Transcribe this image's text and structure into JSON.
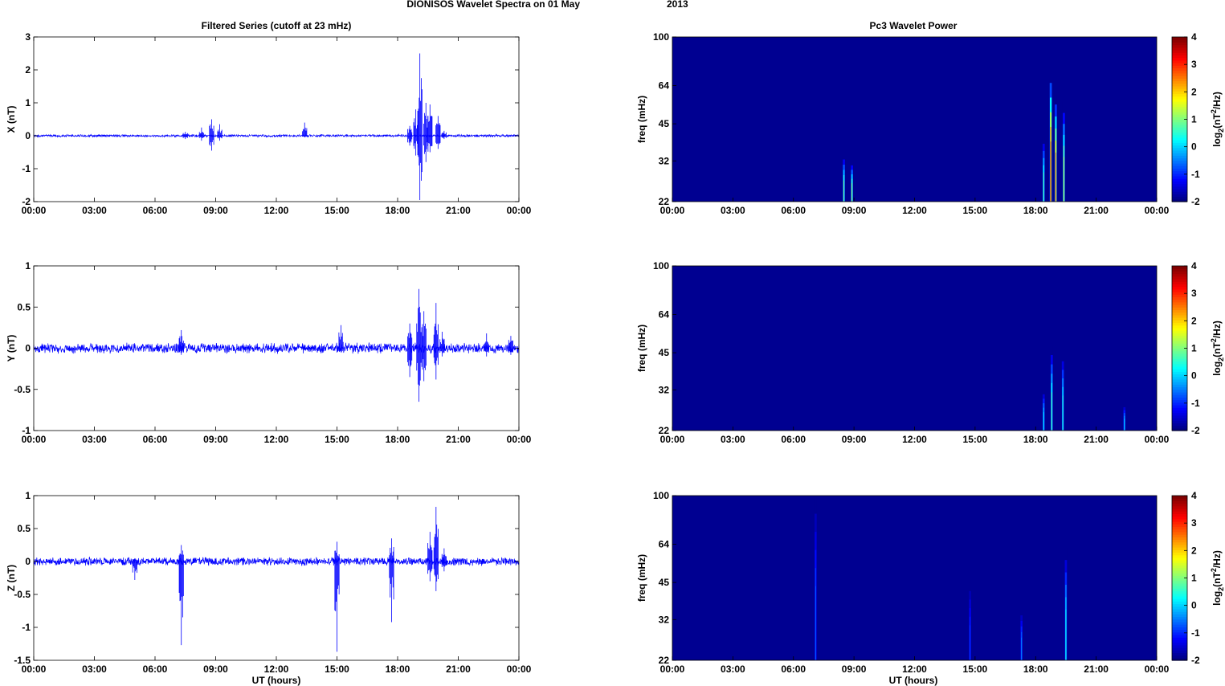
{
  "figure": {
    "suptitle_part1": "DIONISOS Wavelet Spectra on 01 May",
    "suptitle_part2": "2013",
    "left_title": "Filtered Series (cutoff at 23 mHz)",
    "right_title": "Pc3 Wavelet Power",
    "xlabel": "UT (hours)"
  },
  "chart_data": [
    {
      "type": "line",
      "id": "X",
      "ylabel": "X (nT)",
      "x_range_hours": [
        0,
        24
      ],
      "xticks": [
        "00:00",
        "03:00",
        "06:00",
        "09:00",
        "12:00",
        "15:00",
        "18:00",
        "21:00",
        "00:00"
      ],
      "ylim": [
        -2,
        3
      ],
      "yticks": [
        "-2",
        "-1",
        "0",
        "1",
        "2",
        "3"
      ],
      "ytick_values": [
        -2,
        -1,
        0,
        1,
        2,
        3
      ],
      "line_color": "#0000ff",
      "noise_amplitude": 0.03,
      "events": [
        {
          "t": 7.5,
          "min": -0.1,
          "max": 0.12
        },
        {
          "t": 8.3,
          "min": -0.15,
          "max": 0.25
        },
        {
          "t": 8.8,
          "min": -0.45,
          "max": 0.5
        },
        {
          "t": 9.2,
          "min": -0.15,
          "max": 0.35
        },
        {
          "t": 13.4,
          "min": -0.05,
          "max": 0.4
        },
        {
          "t": 18.6,
          "min": -0.3,
          "max": 0.3
        },
        {
          "t": 18.9,
          "min": -0.6,
          "max": 0.8
        },
        {
          "t": 19.1,
          "min": -1.95,
          "max": 2.5
        },
        {
          "t": 19.4,
          "min": -0.8,
          "max": 1.0
        },
        {
          "t": 19.6,
          "min": -0.5,
          "max": 0.95
        },
        {
          "t": 20.0,
          "min": -0.4,
          "max": 0.6
        },
        {
          "t": 20.3,
          "min": -0.1,
          "max": 0.15
        }
      ]
    },
    {
      "type": "line",
      "id": "Y",
      "ylabel": "Y (nT)",
      "x_range_hours": [
        0,
        24
      ],
      "xticks": [
        "00:00",
        "03:00",
        "06:00",
        "09:00",
        "12:00",
        "15:00",
        "18:00",
        "21:00",
        "00:00"
      ],
      "ylim": [
        -1,
        1
      ],
      "yticks": [
        "-1",
        "-0.5",
        "0",
        "0.5",
        "1"
      ],
      "ytick_values": [
        -1,
        -0.5,
        0,
        0.5,
        1
      ],
      "line_color": "#0000ff",
      "noise_amplitude": 0.05,
      "events": [
        {
          "t": 7.3,
          "min": -0.08,
          "max": 0.22
        },
        {
          "t": 15.2,
          "min": -0.05,
          "max": 0.28
        },
        {
          "t": 18.6,
          "min": -0.35,
          "max": 0.3
        },
        {
          "t": 19.05,
          "min": -0.65,
          "max": 0.72
        },
        {
          "t": 19.3,
          "min": -0.4,
          "max": 0.45
        },
        {
          "t": 19.9,
          "min": -0.38,
          "max": 0.55
        },
        {
          "t": 20.2,
          "min": -0.1,
          "max": 0.2
        },
        {
          "t": 22.4,
          "min": -0.1,
          "max": 0.18
        },
        {
          "t": 23.6,
          "min": -0.08,
          "max": 0.15
        }
      ]
    },
    {
      "type": "line",
      "id": "Z",
      "ylabel": "Z (nT)",
      "x_range_hours": [
        0,
        24
      ],
      "xticks": [
        "00:00",
        "03:00",
        "06:00",
        "09:00",
        "12:00",
        "15:00",
        "18:00",
        "21:00",
        "00:00"
      ],
      "ylim": [
        -1.5,
        1
      ],
      "yticks": [
        "-1.5",
        "-1",
        "-0.5",
        "0",
        "0.5",
        "1"
      ],
      "ytick_values": [
        -1.5,
        -1,
        -0.5,
        0,
        0.5,
        1
      ],
      "line_color": "#0000ff",
      "noise_amplitude": 0.05,
      "events": [
        {
          "t": 5.0,
          "min": -0.28,
          "max": 0.05
        },
        {
          "t": 7.3,
          "min": -1.27,
          "max": 0.25
        },
        {
          "t": 15.0,
          "min": -1.37,
          "max": 0.3
        },
        {
          "t": 17.7,
          "min": -0.92,
          "max": 0.35
        },
        {
          "t": 19.6,
          "min": -0.3,
          "max": 0.45
        },
        {
          "t": 19.9,
          "min": -0.45,
          "max": 0.83
        },
        {
          "t": 20.3,
          "min": -0.15,
          "max": 0.2
        }
      ]
    },
    {
      "type": "heatmap",
      "id": "X_power",
      "ylabel": "freq (mHz)",
      "x_range_hours": [
        0,
        24
      ],
      "xticks": [
        "00:00",
        "03:00",
        "06:00",
        "09:00",
        "12:00",
        "15:00",
        "18:00",
        "21:00",
        "00:00"
      ],
      "yscale": "log",
      "ylim_mHz": [
        22,
        100
      ],
      "yticks": [
        "22",
        "32",
        "45",
        "64",
        "100"
      ],
      "ytick_values": [
        22,
        32,
        45,
        64,
        100
      ],
      "colorbar": {
        "label": "log2(nT2/Hz)",
        "range": [
          -2,
          4
        ],
        "ticks": [
          "-2",
          "-1",
          "0",
          "1",
          "2",
          "3",
          "4"
        ],
        "tick_values": [
          -2,
          -1,
          0,
          1,
          2,
          3,
          4
        ]
      },
      "background_level": -1.9,
      "features": [
        {
          "t": 8.5,
          "f_top": 34,
          "level": 1.0
        },
        {
          "t": 8.9,
          "f_top": 32,
          "level": 1.2
        },
        {
          "t": 18.4,
          "f_top": 40,
          "level": 0.8
        },
        {
          "t": 18.75,
          "f_top": 75,
          "level": 3.5
        },
        {
          "t": 19.0,
          "f_top": 60,
          "level": 2.8
        },
        {
          "t": 19.4,
          "f_top": 55,
          "level": 1.5
        }
      ]
    },
    {
      "type": "heatmap",
      "id": "Y_power",
      "ylabel": "freq (mHz)",
      "x_range_hours": [
        0,
        24
      ],
      "xticks": [
        "00:00",
        "03:00",
        "06:00",
        "09:00",
        "12:00",
        "15:00",
        "18:00",
        "21:00",
        "00:00"
      ],
      "yscale": "log",
      "ylim_mHz": [
        22,
        100
      ],
      "yticks": [
        "22",
        "32",
        "45",
        "64",
        "100"
      ],
      "ytick_values": [
        22,
        32,
        45,
        64,
        100
      ],
      "colorbar": {
        "label": "log2(nT2/Hz)",
        "range": [
          -2,
          4
        ],
        "ticks": [
          "-2",
          "-1",
          "0",
          "1",
          "2",
          "3",
          "4"
        ],
        "tick_values": [
          -2,
          -1,
          0,
          1,
          2,
          3,
          4
        ]
      },
      "background_level": -1.9,
      "features": [
        {
          "t": 18.4,
          "f_top": 32,
          "level": 0.2
        },
        {
          "t": 18.8,
          "f_top": 48,
          "level": 0.8
        },
        {
          "t": 19.35,
          "f_top": 45,
          "level": 0.5
        },
        {
          "t": 22.4,
          "f_top": 28,
          "level": 0.0
        }
      ]
    },
    {
      "type": "heatmap",
      "id": "Z_power",
      "ylabel": "freq (mHz)",
      "x_range_hours": [
        0,
        24
      ],
      "xticks": [
        "00:00",
        "03:00",
        "06:00",
        "09:00",
        "12:00",
        "15:00",
        "18:00",
        "21:00",
        "00:00"
      ],
      "yscale": "log",
      "ylim_mHz": [
        22,
        100
      ],
      "yticks": [
        "22",
        "32",
        "45",
        "64",
        "100"
      ],
      "ytick_values": [
        22,
        32,
        45,
        64,
        100
      ],
      "colorbar": {
        "label": "log2(nT2/Hz)",
        "range": [
          -2,
          4
        ],
        "ticks": [
          "-2",
          "-1",
          "0",
          "1",
          "2",
          "3",
          "4"
        ],
        "tick_values": [
          -2,
          -1,
          0,
          1,
          2,
          3,
          4
        ]
      },
      "background_level": -1.9,
      "features": [
        {
          "t": 7.1,
          "f_top": 100,
          "level": -0.7
        },
        {
          "t": 14.75,
          "f_top": 45,
          "level": -0.9
        },
        {
          "t": 17.3,
          "f_top": 35,
          "level": -0.5
        },
        {
          "t": 19.5,
          "f_top": 62,
          "level": 0.3
        }
      ]
    }
  ]
}
